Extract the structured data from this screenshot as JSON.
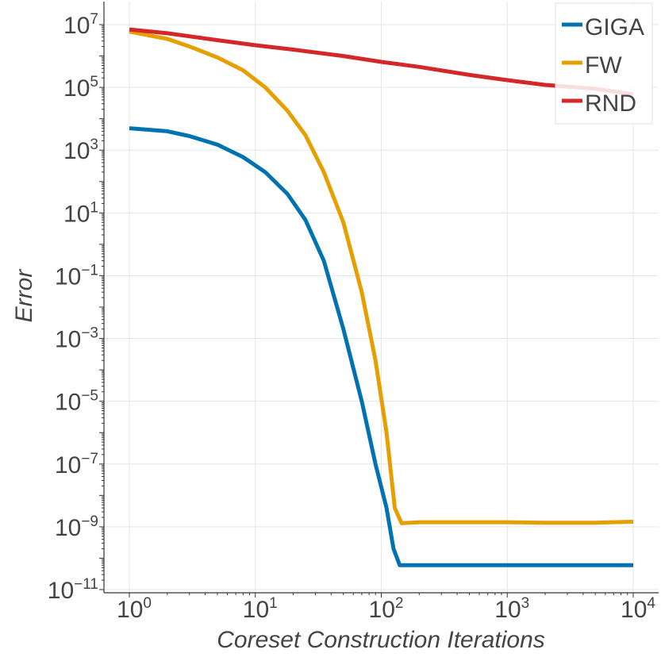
{
  "chart_data": {
    "type": "line",
    "title": "",
    "xlabel": "Coreset Construction Iterations",
    "ylabel": "Error",
    "xscale": "log",
    "yscale": "log",
    "xlim": [
      1,
      10000
    ],
    "ylim": [
      1e-11,
      10000000.0
    ],
    "grid": true,
    "legend_position": "top-right",
    "x_ticks": [
      {
        "value": 1,
        "base": "10",
        "exp": "0"
      },
      {
        "value": 10,
        "base": "10",
        "exp": "1"
      },
      {
        "value": 100,
        "base": "10",
        "exp": "2"
      },
      {
        "value": 1000,
        "base": "10",
        "exp": "3"
      },
      {
        "value": 10000,
        "base": "10",
        "exp": "4"
      }
    ],
    "y_ticks": [
      {
        "value": 10000000.0,
        "base": "10",
        "exp": "7"
      },
      {
        "value": 100000.0,
        "base": "10",
        "exp": "5"
      },
      {
        "value": 1000.0,
        "base": "10",
        "exp": "3"
      },
      {
        "value": 10.0,
        "base": "10",
        "exp": "1"
      },
      {
        "value": 0.1,
        "base": "10",
        "exp": "−1"
      },
      {
        "value": 0.001,
        "base": "10",
        "exp": "−3"
      },
      {
        "value": 1e-05,
        "base": "10",
        "exp": "−5"
      },
      {
        "value": 1e-07,
        "base": "10",
        "exp": "−7"
      },
      {
        "value": 1e-09,
        "base": "10",
        "exp": "−9"
      },
      {
        "value": 1e-11,
        "base": "10",
        "exp": "−11"
      }
    ],
    "series": [
      {
        "name": "GIGA",
        "color": "#0072b2",
        "x": [
          1,
          2,
          3,
          5,
          8,
          12,
          18,
          25,
          35,
          50,
          70,
          90,
          110,
          125,
          140,
          200,
          500,
          1000,
          2000,
          5000,
          10000
        ],
        "y": [
          5000,
          4000,
          2800,
          1500,
          600,
          200,
          40,
          6,
          0.3,
          0.002,
          1e-05,
          1e-07,
          4e-09,
          2e-10,
          6e-11,
          6e-11,
          6e-11,
          6e-11,
          6e-11,
          6e-11,
          6e-11
        ]
      },
      {
        "name": "FW",
        "color": "#e69f00",
        "x": [
          1,
          2,
          3,
          5,
          8,
          12,
          18,
          25,
          35,
          50,
          70,
          90,
          110,
          128,
          145,
          200,
          500,
          1000,
          2000,
          5000,
          10000
        ],
        "y": [
          6000000,
          3500000,
          2000000,
          900000,
          350000,
          100000,
          18000,
          3000,
          200,
          5,
          0.03,
          0.0002,
          1e-06,
          4e-09,
          1.3e-09,
          1.4e-09,
          1.4e-09,
          1.4e-09,
          1.35e-09,
          1.35e-09,
          1.45e-09
        ]
      },
      {
        "name": "RND",
        "color": "#d62728",
        "x": [
          1,
          2,
          5,
          10,
          20,
          50,
          100,
          200,
          500,
          1000,
          2000,
          5000,
          10000
        ],
        "y": [
          7000000,
          5300000,
          3200000,
          2200000,
          1600000,
          1000000,
          650000,
          450000,
          250000,
          170000,
          120000,
          90000,
          60000
        ]
      }
    ]
  }
}
